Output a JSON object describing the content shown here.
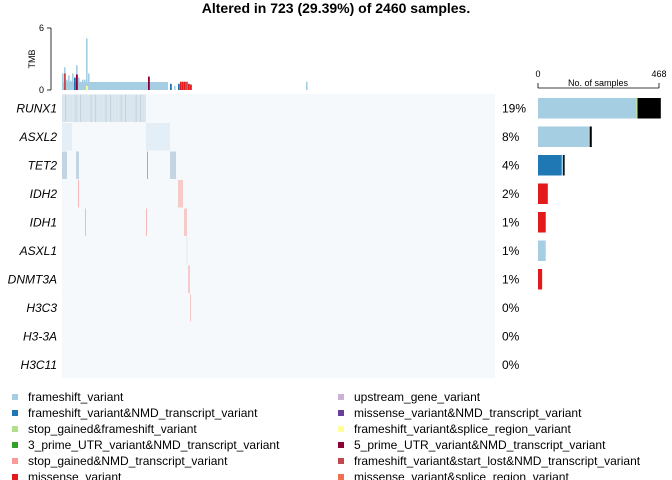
{
  "chart_data": {
    "type": "heatmap",
    "title": "Altered in 723 (29.39%) of 2460 samples.",
    "tmb": {
      "label": "TMB",
      "max_label": "6",
      "min_label": "0",
      "ylim": [
        0,
        6
      ]
    },
    "samples_axis": {
      "label": "No. of samples",
      "min_label": "0",
      "max_label": "468",
      "xlim": [
        0,
        468
      ]
    },
    "background_color": "#f5f9fc",
    "genes": [
      {
        "name": "RUNX1",
        "pct": "19%",
        "bar": [
          {
            "type": "frameshift_variant",
            "value": 380
          },
          {
            "type": "stop_gained&frameshift_variant",
            "value": 5
          },
          {
            "type": "other",
            "value": 90
          }
        ]
      },
      {
        "name": "ASXL2",
        "pct": "8%",
        "bar": [
          {
            "type": "frameshift_variant",
            "value": 197
          },
          {
            "type": "stop_gained&frameshift_variant",
            "value": 3
          },
          {
            "type": "other",
            "value": 8
          }
        ]
      },
      {
        "name": "TET2",
        "pct": "4%",
        "bar": [
          {
            "type": "frameshift_variant&NMD_transcript_variant",
            "value": 92
          },
          {
            "type": "frameshift_variant",
            "value": 5
          },
          {
            "type": "other",
            "value": 6
          }
        ]
      },
      {
        "name": "IDH2",
        "pct": "2%",
        "bar": [
          {
            "type": "missense_variant",
            "value": 38
          }
        ]
      },
      {
        "name": "IDH1",
        "pct": "1%",
        "bar": [
          {
            "type": "missense_variant",
            "value": 30
          }
        ]
      },
      {
        "name": "ASXL1",
        "pct": "1%",
        "bar": [
          {
            "type": "frameshift_variant",
            "value": 27
          },
          {
            "type": "stop_gained&frameshift_variant",
            "value": 3
          }
        ]
      },
      {
        "name": "DNMT3A",
        "pct": "1%",
        "bar": [
          {
            "type": "missense_variant",
            "value": 16
          }
        ]
      },
      {
        "name": "H3C3",
        "pct": "0%",
        "bar": []
      },
      {
        "name": "H3-3A",
        "pct": "0%",
        "bar": []
      },
      {
        "name": "H3C11",
        "pct": "0%",
        "bar": []
      }
    ],
    "legend": [
      {
        "label": "frameshift_variant",
        "color": "#a6cee3"
      },
      {
        "label": "upstream_gene_variant",
        "color": "#cab2d6"
      },
      {
        "label": "frameshift_variant&NMD_transcript_variant",
        "color": "#1f78b4"
      },
      {
        "label": "missense_variant&NMD_transcript_variant",
        "color": "#6a3d9a"
      },
      {
        "label": "stop_gained&frameshift_variant",
        "color": "#b2df8a"
      },
      {
        "label": "frameshift_variant&splice_region_variant",
        "color": "#ffff99"
      },
      {
        "label": "3_prime_UTR_variant&NMD_transcript_variant",
        "color": "#33a02c"
      },
      {
        "label": "5_prime_UTR_variant&NMD_transcript_variant",
        "color": "#8b0036"
      },
      {
        "label": "stop_gained&NMD_transcript_variant",
        "color": "#fb9a99"
      },
      {
        "label": "frameshift_variant&start_lost&NMD_transcript_variant",
        "color": "#c2474f"
      },
      {
        "label": "missense_variant",
        "color": "#e31a1c"
      },
      {
        "label": "missense_variant&splice_region_variant",
        "color": "#f07050"
      }
    ],
    "type_colors": {
      "frameshift_variant": "#a6cee3",
      "frameshift_variant&NMD_transcript_variant": "#1f78b4",
      "stop_gained&frameshift_variant": "#b2df8a",
      "missense_variant": "#e31a1c",
      "other": "#000000"
    }
  }
}
